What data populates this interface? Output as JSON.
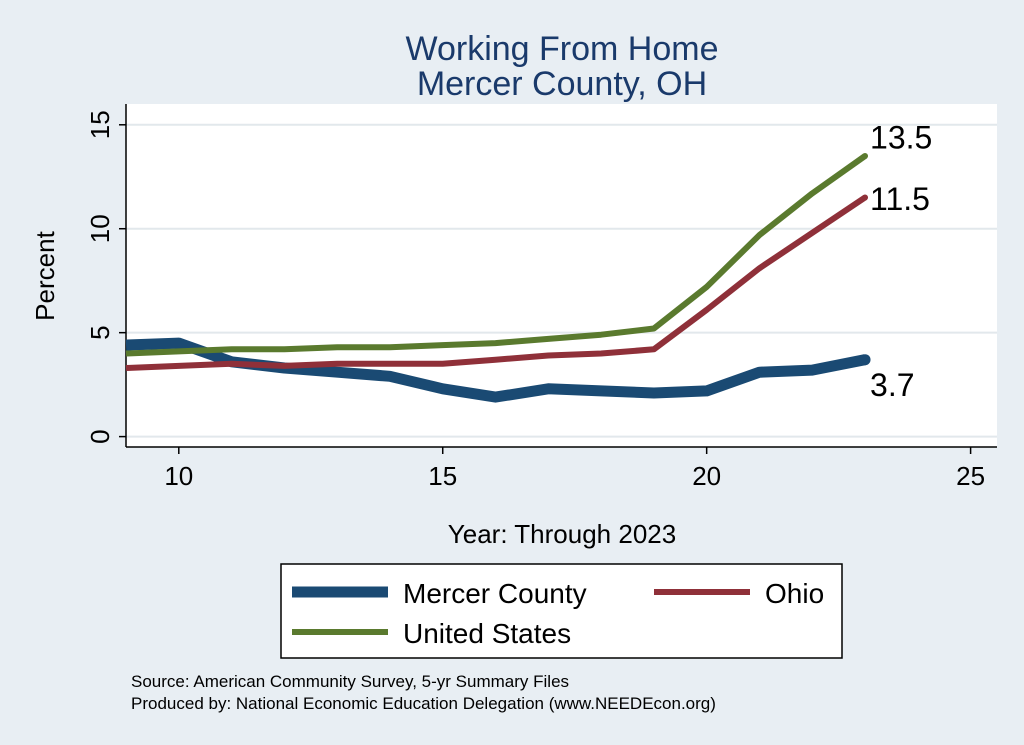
{
  "chart_data": {
    "type": "line",
    "title": [
      "Working From Home",
      "Mercer County, OH"
    ],
    "ylabel": "Percent",
    "xlabel": "Year: Through 2023",
    "xlim": [
      9,
      25.5
    ],
    "ylim": [
      -0.5,
      16
    ],
    "x_ticks": [
      10,
      15,
      20,
      25
    ],
    "y_ticks": [
      0,
      5,
      10,
      15
    ],
    "grid": true,
    "legend_position": "bottom",
    "series": [
      {
        "name": "Mercer County",
        "color": "#1a4a73",
        "width": 11,
        "end_label": "3.7",
        "x": [
          9,
          10,
          11,
          12,
          13,
          14,
          15,
          16,
          17,
          18,
          19,
          20,
          21,
          22,
          23
        ],
        "y": [
          4.4,
          4.5,
          3.6,
          3.3,
          3.1,
          2.9,
          2.3,
          1.9,
          2.3,
          2.2,
          2.1,
          2.2,
          3.1,
          3.2,
          3.7
        ]
      },
      {
        "name": "Ohio",
        "color": "#8f3039",
        "width": 6,
        "end_label": "11.5",
        "x": [
          9,
          10,
          11,
          12,
          13,
          14,
          15,
          16,
          17,
          18,
          19,
          20,
          21,
          22,
          23
        ],
        "y": [
          3.3,
          3.4,
          3.5,
          3.4,
          3.5,
          3.5,
          3.5,
          3.7,
          3.9,
          4.0,
          4.2,
          6.1,
          8.1,
          9.8,
          11.5
        ]
      },
      {
        "name": "United States",
        "color": "#5a7a2e",
        "width": 6,
        "end_label": "13.5",
        "x": [
          9,
          10,
          11,
          12,
          13,
          14,
          15,
          16,
          17,
          18,
          19,
          20,
          21,
          22,
          23
        ],
        "y": [
          4.0,
          4.1,
          4.2,
          4.2,
          4.3,
          4.3,
          4.4,
          4.5,
          4.7,
          4.9,
          5.2,
          7.2,
          9.7,
          11.7,
          13.5
        ]
      }
    ]
  },
  "legend": {
    "mercer_label": "Mercer County",
    "ohio_label": "Ohio",
    "us_label": "United States"
  },
  "source": {
    "line1": "Source: American Community Survey, 5-yr Summary Files",
    "line2": "Produced by: National Economic Education Delegation (www.NEEDEcon.org)"
  }
}
